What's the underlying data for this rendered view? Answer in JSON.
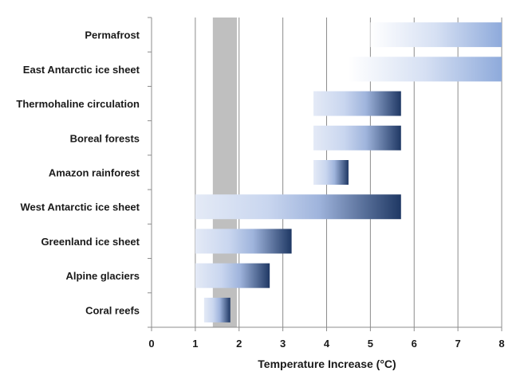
{
  "chart_data": {
    "type": "bar",
    "orientation": "horizontal",
    "xlabel": "Temperature Increase (°C)",
    "xlim": [
      0,
      8
    ],
    "xticks": [
      0,
      1,
      2,
      3,
      4,
      5,
      6,
      7,
      8
    ],
    "grid": "vertical",
    "highlight_band": {
      "from": 1.4,
      "to": 1.95,
      "color": "#bfbfbf"
    },
    "bar_color_dark": "#1f3864",
    "bar_color_light": "#dae3f3",
    "categories": [
      "Permafrost",
      "East Antarctic ice sheet",
      "Thermohaline circulation",
      "Boreal forests",
      "Amazon rainforest",
      "West Antarctic ice sheet",
      "Greenland ice sheet",
      "Alpine glaciers",
      "Coral reefs"
    ],
    "ranges": [
      {
        "start": 5.0,
        "end": 8.0,
        "dark_end": false
      },
      {
        "start": 4.5,
        "end": 8.0,
        "dark_end": false
      },
      {
        "start": 3.7,
        "end": 5.7,
        "dark_end": true
      },
      {
        "start": 3.7,
        "end": 5.7,
        "dark_end": true
      },
      {
        "start": 3.7,
        "end": 4.5,
        "dark_end": true
      },
      {
        "start": 1.0,
        "end": 5.7,
        "dark_end": true
      },
      {
        "start": 1.0,
        "end": 3.2,
        "dark_end": true
      },
      {
        "start": 1.0,
        "end": 2.7,
        "dark_end": true
      },
      {
        "start": 1.2,
        "end": 1.8,
        "dark_end": true
      }
    ]
  }
}
